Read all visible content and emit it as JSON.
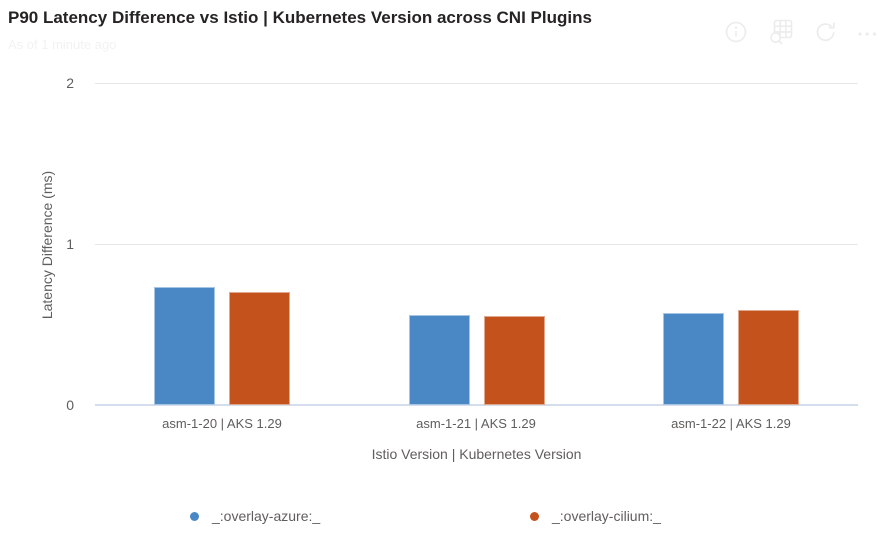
{
  "header": {
    "title": "P90 Latency Difference vs Istio | Kubernetes Version across CNI Plugins",
    "subtitle": "As of 1 minute ago",
    "icons": [
      {
        "name": "info-icon"
      },
      {
        "name": "explore-data-icon"
      },
      {
        "name": "refresh-icon"
      },
      {
        "name": "more-options-icon"
      }
    ]
  },
  "chart_data": {
    "type": "bar",
    "title": "P90 Latency Difference vs Istio | Kubernetes Version across CNI Plugins",
    "categories": [
      "asm-1-20 | AKS 1.29",
      "asm-1-21 | AKS 1.29",
      "asm-1-22 | AKS 1.29"
    ],
    "series": [
      {
        "name": "_:overlay-azure:_",
        "color": "#4A87C5",
        "border_color": "#A6C5E2",
        "values": [
          0.73,
          0.56,
          0.57
        ]
      },
      {
        "name": "_:overlay-cilium:_",
        "color": "#C4521D",
        "border_color": "#E1A98B",
        "values": [
          0.7,
          0.55,
          0.59
        ]
      }
    ],
    "xlabel": "Istio Version | Kubernetes Version",
    "ylabel": "Latency Difference (ms)",
    "ylim": [
      0,
      2
    ],
    "yticks": [
      0,
      1,
      2
    ],
    "grid": true,
    "legend_position": "bottom",
    "axis_text_color": "#605E5C",
    "gridline_color": "#E8E8E8",
    "baseline_color": "#D5DCEC"
  }
}
